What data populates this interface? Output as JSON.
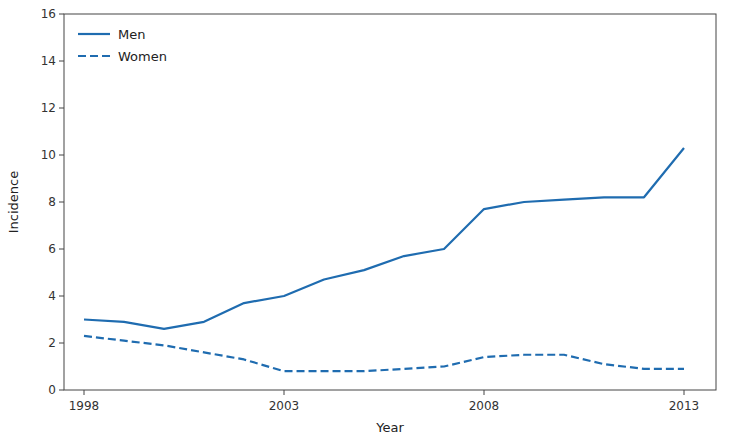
{
  "chart_data": {
    "type": "line",
    "x": [
      1998,
      1999,
      2000,
      2001,
      2002,
      2003,
      2004,
      2005,
      2006,
      2007,
      2008,
      2009,
      2010,
      2011,
      2012,
      2013
    ],
    "series": [
      {
        "name": "Men",
        "color": "#1f6cb0",
        "line_style": "solid",
        "values": [
          3.0,
          2.9,
          2.6,
          2.9,
          3.7,
          4.0,
          4.7,
          5.1,
          5.7,
          6.0,
          7.7,
          8.0,
          8.1,
          8.2,
          8.2,
          10.3
        ]
      },
      {
        "name": "Women",
        "color": "#1f6cb0",
        "line_style": "dashed",
        "values": [
          2.3,
          2.1,
          1.9,
          1.6,
          1.3,
          0.8,
          0.8,
          0.8,
          0.9,
          1.0,
          1.4,
          1.5,
          1.5,
          1.1,
          0.9,
          0.9
        ]
      }
    ],
    "xlabel": "Year",
    "ylabel": "Incidence",
    "xlim": [
      1997.5,
      2013.8
    ],
    "xticks": [
      1998,
      2003,
      2008,
      2013
    ],
    "ylim": [
      0,
      16
    ],
    "yticks": [
      0,
      2,
      4,
      6,
      8,
      10,
      12,
      14,
      16
    ],
    "grid": false,
    "legend": "upper left"
  }
}
